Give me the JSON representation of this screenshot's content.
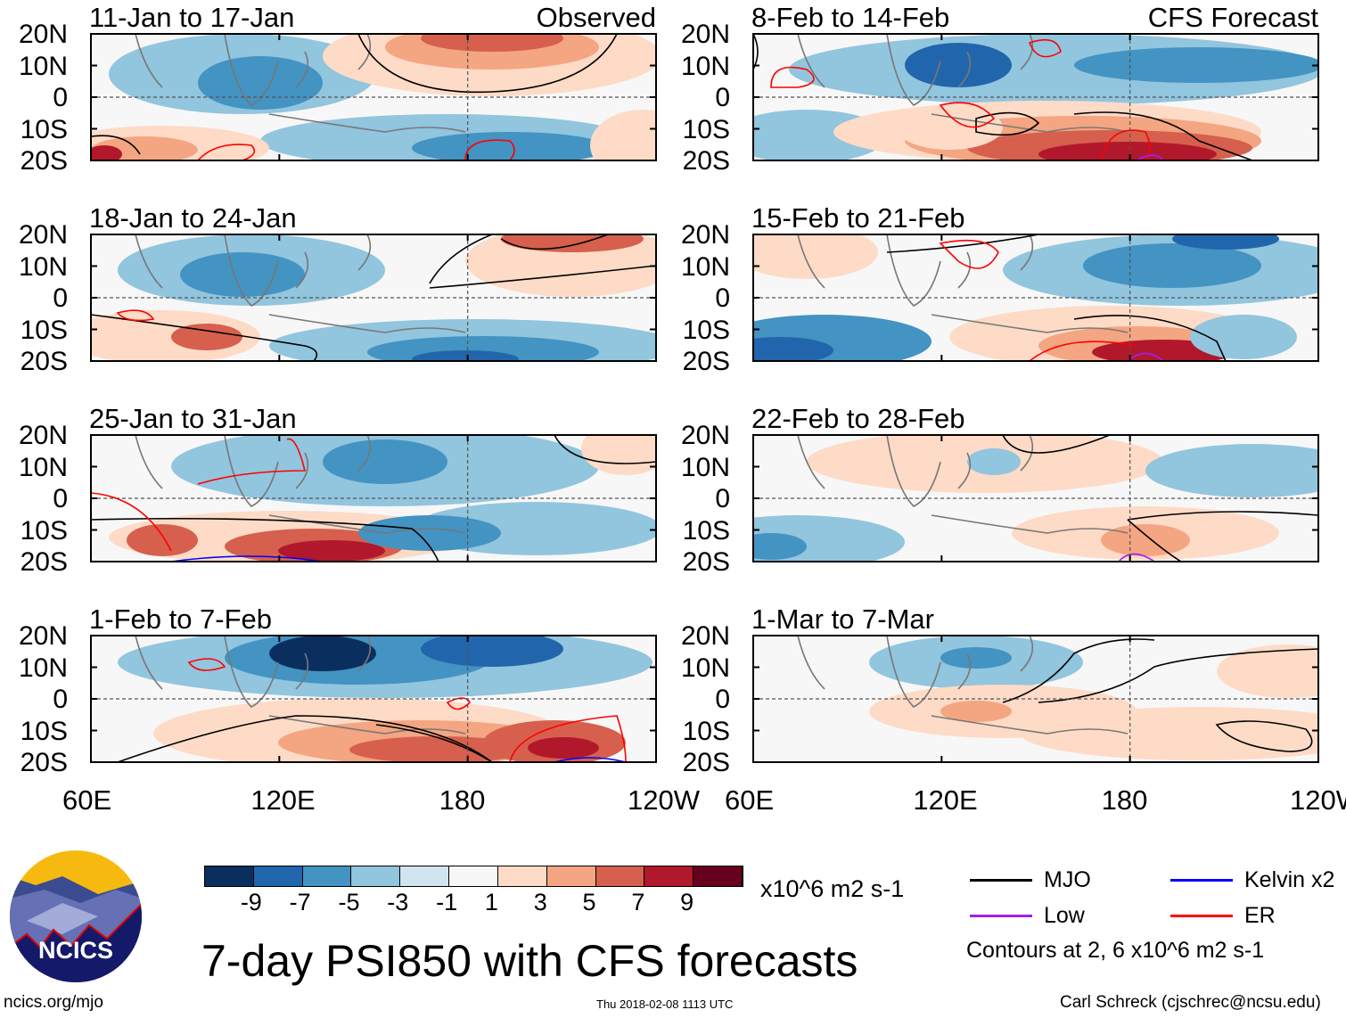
{
  "chart_data": {
    "type": "heatmap",
    "title": "7-day PSI850 with CFS forecasts",
    "units": "x10^6 m2 s-1",
    "colorbar": {
      "ticks": [
        "-9",
        "-7",
        "-5",
        "-3",
        "-1",
        "1",
        "3",
        "5",
        "7",
        "9"
      ],
      "levels": [
        -9,
        -7,
        -5,
        -3,
        -1,
        1,
        3,
        5,
        7,
        9
      ],
      "colors": [
        "#0a2f5f",
        "#2166ac",
        "#4393c3",
        "#92c5de",
        "#d1e5f0",
        "#f7f7f7",
        "#fddbc7",
        "#f4a582",
        "#d6604d",
        "#b2182b",
        "#67001f"
      ]
    },
    "lat_ticks": [
      "20N",
      "10N",
      "0",
      "10S",
      "20S"
    ],
    "lon_ticks": [
      "60E",
      "120E",
      "180",
      "120W"
    ],
    "column_labels": {
      "left": "Observed",
      "right": "CFS Forecast"
    },
    "panels": [
      {
        "title": "11-Jan to 17-Jan",
        "kind": "observed"
      },
      {
        "title": "18-Jan to 24-Jan",
        "kind": "observed"
      },
      {
        "title": "25-Jan to 31-Jan",
        "kind": "observed"
      },
      {
        "title": "1-Feb to 7-Feb",
        "kind": "observed"
      },
      {
        "title": "8-Feb to 14-Feb",
        "kind": "forecast"
      },
      {
        "title": "15-Feb to 21-Feb",
        "kind": "forecast"
      },
      {
        "title": "22-Feb to 28-Feb",
        "kind": "forecast"
      },
      {
        "title": "1-Mar to 7-Mar",
        "kind": "forecast"
      }
    ],
    "legend": [
      {
        "label": "MJO",
        "color": "#000000"
      },
      {
        "label": "Kelvin x2",
        "color": "#0000ff"
      },
      {
        "label": "Low",
        "color": "#a020f0"
      },
      {
        "label": "ER",
        "color": "#ff0000"
      }
    ],
    "contour_note": "Contours at 2, 6 x10^6 m2 s-1"
  },
  "footer": {
    "logo_text": "NCICS",
    "url": "ncics.org/mjo",
    "timestamp": "Thu 2018-02-08 1113 UTC",
    "author": "Carl Schreck (cjschrec@ncsu.edu)"
  }
}
